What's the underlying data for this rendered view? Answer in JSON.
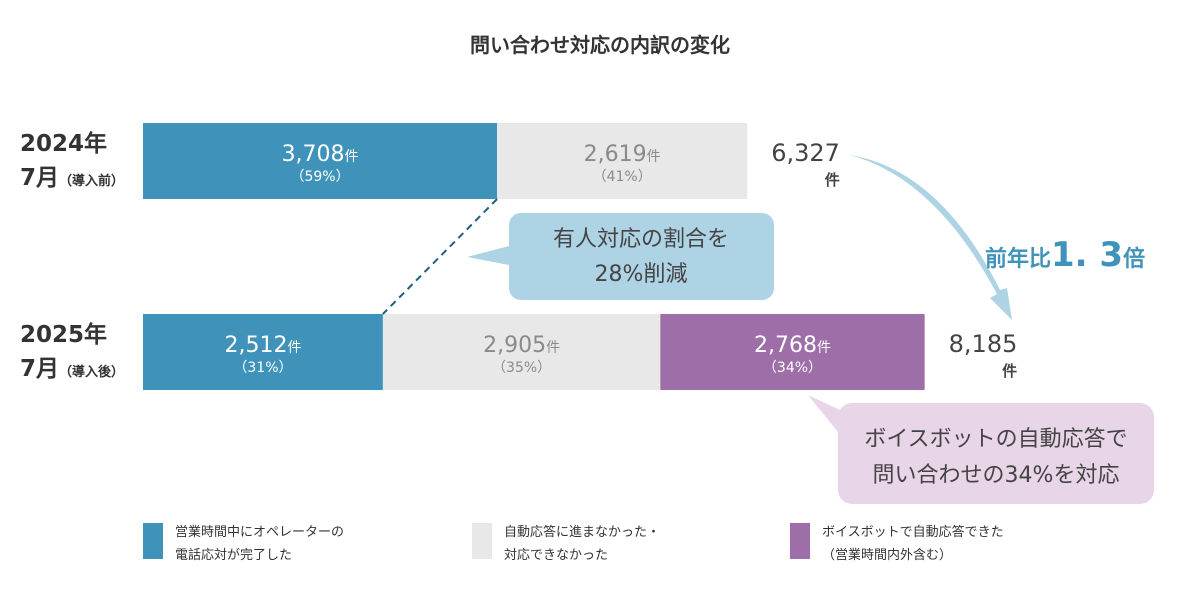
{
  "chart_data": {
    "type": "bar",
    "orientation": "horizontal",
    "stacked": true,
    "title": "問い合わせ対応の内訳の変化",
    "unit": "件",
    "categories": [
      {
        "year": "2024年",
        "month": "7月",
        "note": "（導入前）",
        "total": 6327,
        "total_label": "6,327"
      },
      {
        "year": "2025年",
        "month": "7月",
        "note": "（導入後）",
        "total": 8185,
        "total_label": "8,185"
      }
    ],
    "series": [
      {
        "name": "営業時間中にオペレーターの電話応対が完了した",
        "legend_lines": [
          "営業時間中にオペレーターの",
          "電話応対が完了した"
        ],
        "color": "#3f93ba",
        "text_color": "#ffffff",
        "values": [
          3708,
          2512
        ],
        "value_labels": [
          "3,708",
          "2,512"
        ],
        "pct_labels": [
          "（59%）",
          "（31%）"
        ]
      },
      {
        "name": "自動応答に進まなかった・対応できなかった",
        "legend_lines": [
          "自動応答に進まなかった・",
          "対応できなかった"
        ],
        "color": "#e8e8e8",
        "text_color": "#8a8a8a",
        "values": [
          2619,
          2905
        ],
        "value_labels": [
          "2,619",
          "2,905"
        ],
        "pct_labels": [
          "（41%）",
          "（35%）"
        ]
      },
      {
        "name": "ボイスボットで自動応答できた（営業時間内外含む）",
        "legend_lines": [
          "ボイスボットで自動応答できた",
          "（営業時間内外含む）"
        ],
        "color": "#9e6ea8",
        "text_color": "#ffffff",
        "values": [
          0,
          2768
        ],
        "value_labels": [
          "",
          "2,768"
        ],
        "pct_labels": [
          "",
          "（34%）"
        ]
      }
    ],
    "annotations": {
      "reduction_callout": {
        "lines": [
          "有人対応の割合を",
          "28%削減"
        ],
        "color": "#aed3e5"
      },
      "growth": {
        "prefix": "前年比",
        "value": "1. 3",
        "suffix": "倍",
        "color": "#3f93ba",
        "arrow_color": "#aed3e5"
      },
      "voicebot_callout": {
        "lines": [
          "ボイスボットの自動応答で",
          "問い合わせの34%を対応"
        ],
        "color": "#e8d5e8"
      }
    },
    "legend_position": "bottom"
  }
}
